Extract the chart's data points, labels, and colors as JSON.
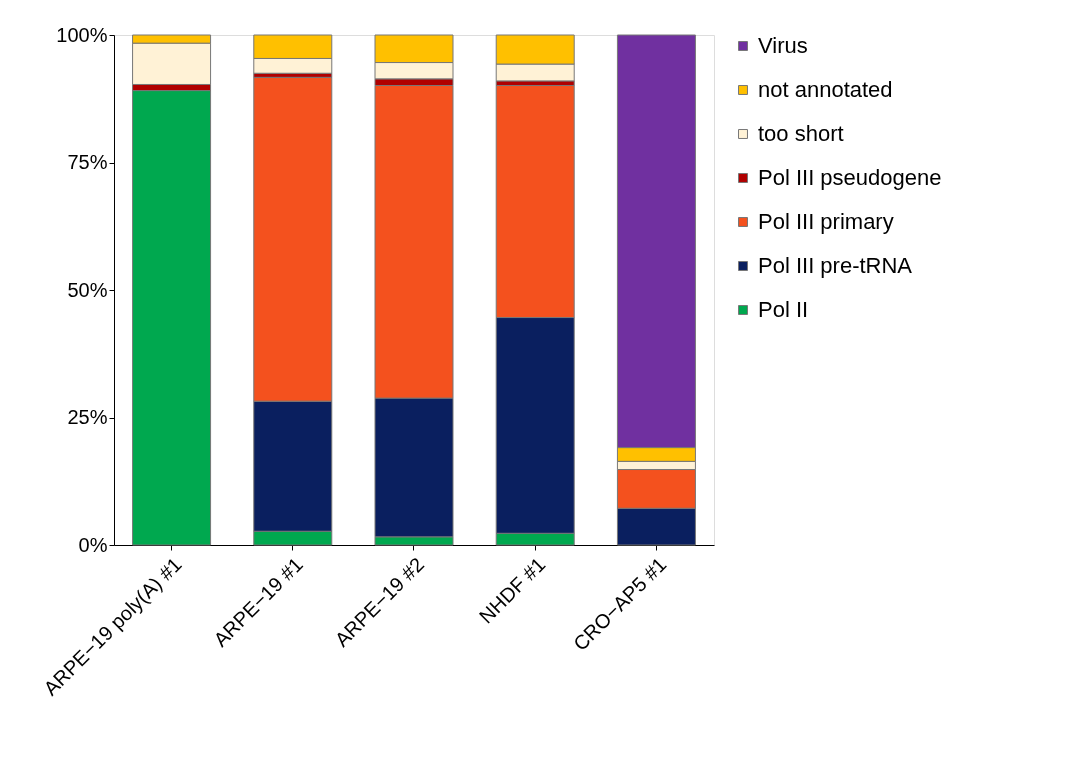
{
  "chart_data": {
    "type": "bar",
    "stacked": true,
    "categories": [
      "ARPE−19 poly(A) #1",
      "ARPE−19 #1",
      "ARPE−19 #2",
      "NHDF #1",
      "CRO−AP5 #1"
    ],
    "series": [
      {
        "name": "Pol II",
        "color": "#00a84f",
        "values": [
          89.1,
          2.7,
          1.6,
          2.3,
          0
        ]
      },
      {
        "name": "Pol III pre-tRNA",
        "color": "#0a1f5f",
        "values": [
          0,
          25.5,
          27.2,
          42.3,
          7.2
        ]
      },
      {
        "name": "Pol III primary",
        "color": "#f4511e",
        "values": [
          0,
          63.5,
          61.3,
          45.5,
          7.6
        ]
      },
      {
        "name": "Pol III pseudogene",
        "color": "#b00000",
        "values": [
          1.2,
          0.8,
          1.3,
          0.9,
          0
        ]
      },
      {
        "name": "too short",
        "color": "#fff2d6",
        "values": [
          8.1,
          2.9,
          3.2,
          3.3,
          1.6
        ]
      },
      {
        "name": "not annotated",
        "color": "#ffc000",
        "values": [
          1.6,
          4.6,
          5.4,
          5.7,
          2.7
        ]
      },
      {
        "name": "Virus",
        "color": "#7030a0",
        "values": [
          0,
          0,
          0,
          0,
          80.9
        ]
      }
    ],
    "ylim": [
      0,
      100
    ],
    "yticks": [
      {
        "value": 0,
        "label": "0%"
      },
      {
        "value": 25,
        "label": "25%"
      },
      {
        "value": 50,
        "label": "50%"
      },
      {
        "value": 75,
        "label": "75%"
      },
      {
        "value": 100,
        "label": "100%"
      }
    ],
    "grid": false,
    "legend": "right"
  }
}
